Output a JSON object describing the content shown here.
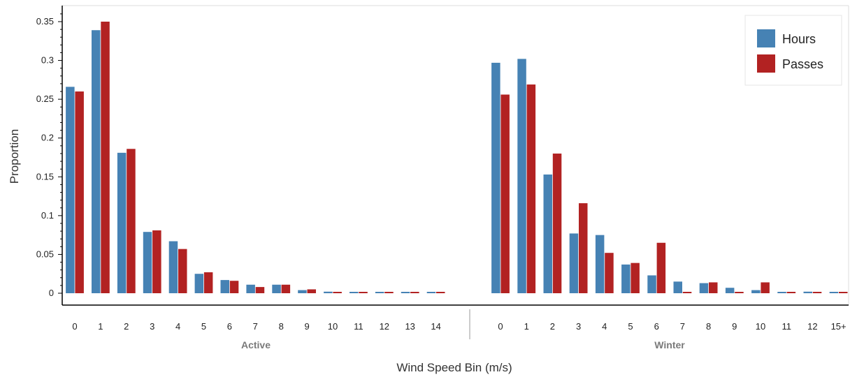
{
  "chart_data": {
    "type": "bar",
    "xlabel": "Wind Speed Bin (m/s)",
    "ylabel": "Proportion",
    "ylim": [
      0,
      0.36
    ],
    "yticks": [
      0,
      0.05,
      0.1,
      0.15,
      0.2,
      0.25,
      0.3,
      0.35
    ],
    "ytick_labels": [
      "0",
      "0.05",
      "0.1",
      "0.15",
      "0.2",
      "0.25",
      "0.3",
      "0.35"
    ],
    "legend": {
      "position": "top-right",
      "entries": [
        "Hours",
        "Passes"
      ]
    },
    "colors": {
      "Hours": "#4682b4",
      "Passes": "#b22222"
    },
    "groups": [
      {
        "name": "Active",
        "categories": [
          "0",
          "1",
          "2",
          "3",
          "4",
          "5",
          "6",
          "7",
          "8",
          "9",
          "10",
          "11",
          "12",
          "13",
          "14"
        ],
        "series": [
          {
            "name": "Hours",
            "values": [
              0.266,
              0.339,
              0.181,
              0.079,
              0.067,
              0.025,
              0.017,
              0.011,
              0.011,
              0.004,
              0.002,
              0.001,
              0.001,
              0.001,
              0.001
            ]
          },
          {
            "name": "Passes",
            "values": [
              0.26,
              0.35,
              0.186,
              0.081,
              0.057,
              0.027,
              0.016,
              0.008,
              0.011,
              0.005,
              0.001,
              0.001,
              0.001,
              0.001,
              0.001
            ]
          }
        ]
      },
      {
        "name": "Winter",
        "categories": [
          "0",
          "1",
          "2",
          "3",
          "4",
          "5",
          "6",
          "7",
          "8",
          "9",
          "10",
          "11",
          "12",
          "15+"
        ],
        "series": [
          {
            "name": "Hours",
            "values": [
              0.297,
              0.302,
              0.153,
              0.077,
              0.075,
              0.037,
              0.023,
              0.015,
              0.013,
              0.007,
              0.004,
              0.001,
              0.002,
              0.001
            ]
          },
          {
            "name": "Passes",
            "values": [
              0.256,
              0.269,
              0.18,
              0.116,
              0.052,
              0.039,
              0.065,
              0.001,
              0.014,
              0.001,
              0.014,
              0.001,
              0.001,
              0.001
            ]
          }
        ]
      }
    ]
  }
}
